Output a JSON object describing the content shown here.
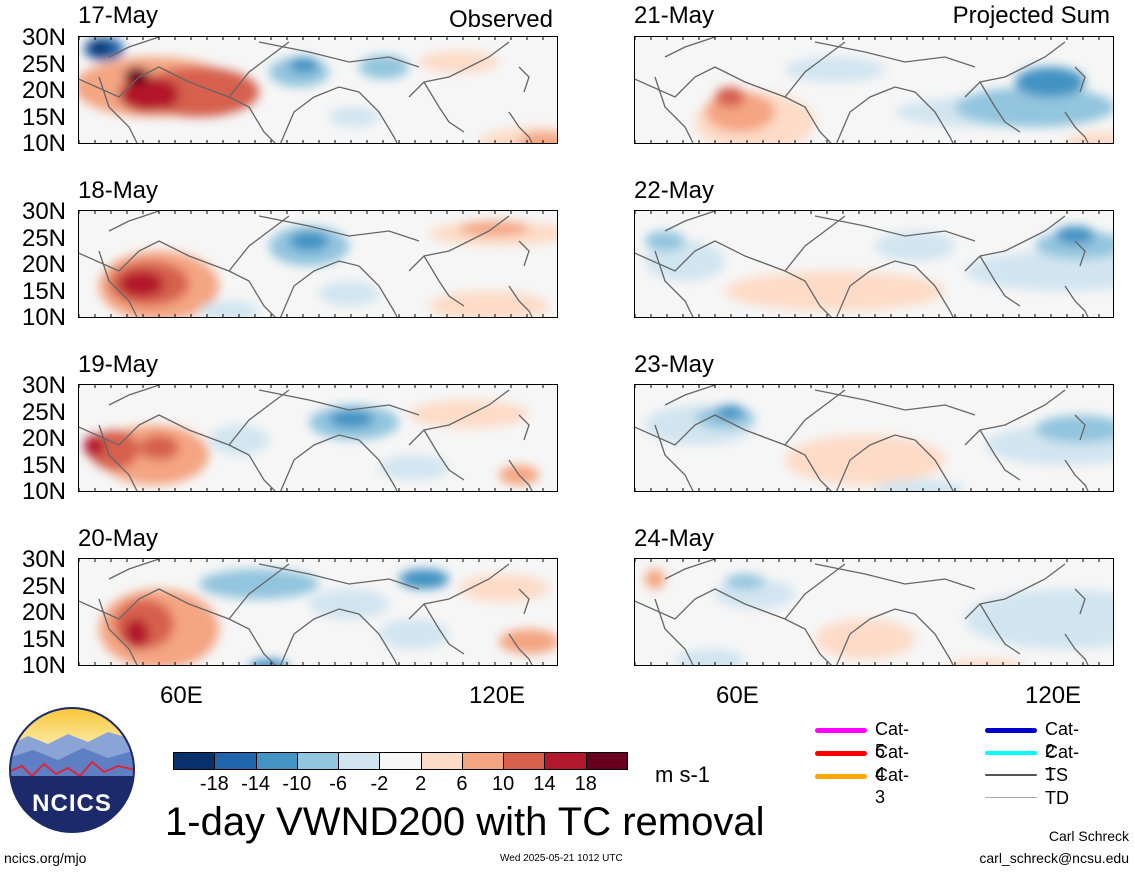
{
  "observed_label": "Observed",
  "projected_label": "Projected Sum",
  "panels": [
    {
      "date": "17-May",
      "pattern": "obs1"
    },
    {
      "date": "18-May",
      "pattern": "obs2"
    },
    {
      "date": "19-May",
      "pattern": "obs3"
    },
    {
      "date": "20-May",
      "pattern": "obs4"
    },
    {
      "date": "21-May",
      "pattern": "prj1"
    },
    {
      "date": "22-May",
      "pattern": "prj2"
    },
    {
      "date": "23-May",
      "pattern": "prj3"
    },
    {
      "date": "24-May",
      "pattern": "prj4"
    }
  ],
  "lat_labels": [
    "30N",
    "25N",
    "20N",
    "15N",
    "10N"
  ],
  "lon_labels": [
    "60E",
    "120E"
  ],
  "colorbar": {
    "colors": [
      "#08306b",
      "#2166ac",
      "#4393c3",
      "#92c5de",
      "#d1e5f0",
      "#f7f7f7",
      "#fddbc7",
      "#f4a582",
      "#d6604d",
      "#b2182b",
      "#67001f"
    ],
    "ticks": [
      "-18",
      "-14",
      "-10",
      "-6",
      "-2",
      "2",
      "6",
      "10",
      "14",
      "18"
    ],
    "units": "m s-1"
  },
  "title": "1-day VWND200 with TC removal",
  "legend": [
    {
      "label": "Cat-5",
      "color": "#ff00ff",
      "width": 5
    },
    {
      "label": "Cat-4",
      "color": "#ff0000",
      "width": 5
    },
    {
      "label": "Cat-3",
      "color": "#ffa500",
      "width": 5
    },
    {
      "label": "Cat-2",
      "color": "#0000cc",
      "width": 5
    },
    {
      "label": "Cat-1",
      "color": "#00ffff",
      "width": 4
    },
    {
      "label": "TS",
      "color": "#555555",
      "width": 2
    },
    {
      "label": "TD",
      "color": "#aaaaaa",
      "width": 1
    }
  ],
  "logo_text": "NCICS",
  "url": "ncics.org/mjo",
  "timestamp": "Wed 2025-05-21 1012 UTC",
  "author": "Carl Schreck",
  "email": "carl_schreck@ncsu.edu"
}
